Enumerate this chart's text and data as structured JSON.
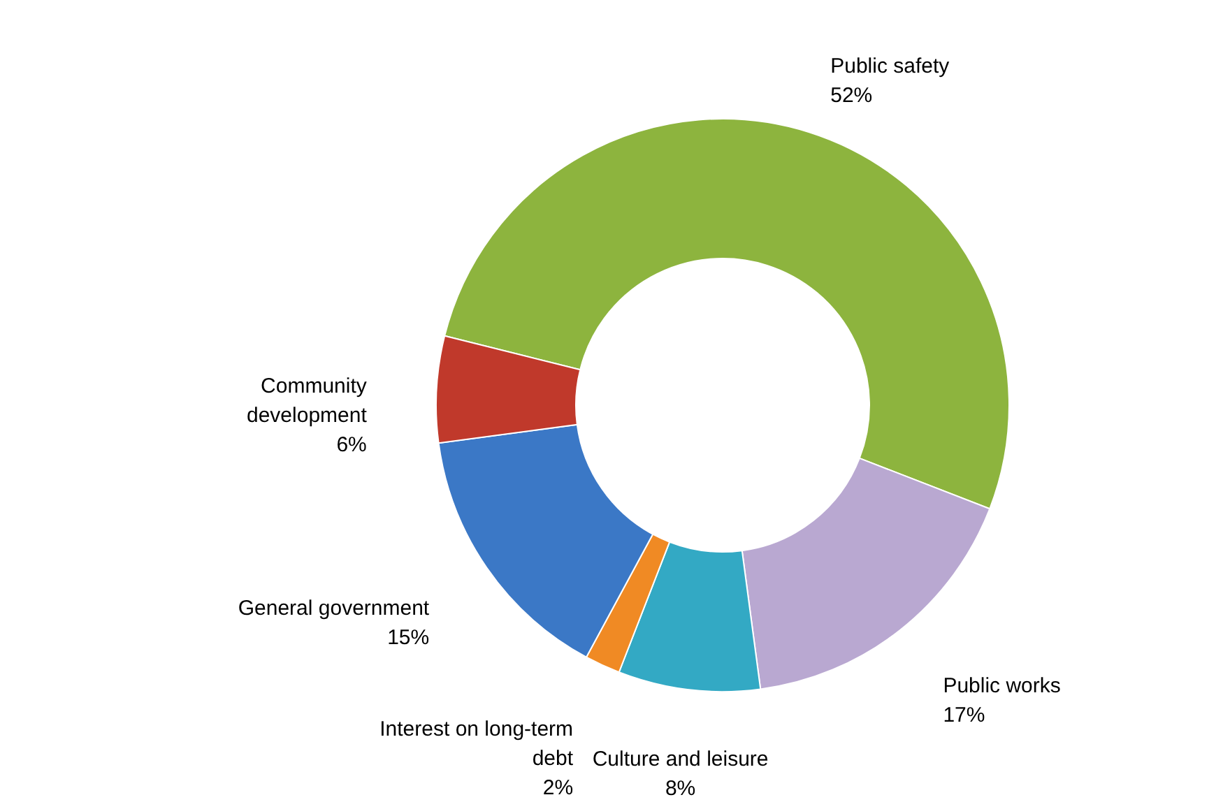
{
  "chart_data": {
    "type": "donut",
    "categories": [
      "Public safety",
      "Public works",
      "Culture and leisure",
      "Interest on long-term debt",
      "General government",
      "Community development"
    ],
    "values": [
      52,
      17,
      8,
      2,
      15,
      6
    ],
    "value_labels": [
      "52%",
      "17%",
      "8%",
      "2%",
      "15%",
      "6%"
    ],
    "colors": [
      "#8db43e",
      "#b9a8d1",
      "#33a9c4",
      "#f08a24",
      "#3b78c6",
      "#c0392b"
    ]
  }
}
